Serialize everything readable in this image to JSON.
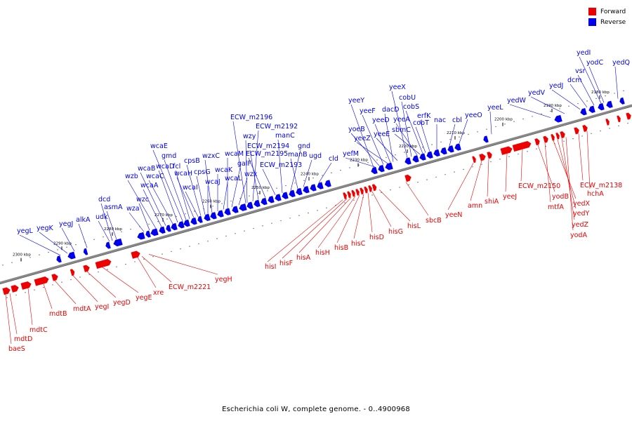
{
  "legend": {
    "forward_label": "Forward",
    "reverse_label": "Reverse"
  },
  "colors": {
    "forward": "#ee0000",
    "reverse": "#0000ee",
    "axis": "#888888"
  },
  "caption": "Escherichia coli W, complete genome. - 0..4900968",
  "scale_label_suffix": " kbp",
  "ticks_kbp": [
    2300,
    2290,
    2280,
    2270,
    2260,
    2250,
    2240,
    2230,
    2220,
    2210,
    2200,
    2190,
    2180
  ],
  "genes": {
    "forward": [
      "baeS",
      "mdtD",
      "mdtC",
      "mdtB",
      "mdtA",
      "yegI",
      "yegD",
      "yegE",
      "xre",
      "ECW_m2221",
      "yegH",
      "hisI",
      "hisF",
      "hisA",
      "hisH",
      "hisB",
      "hisC",
      "hisD",
      "hisG",
      "hisL",
      "sbcB",
      "yeeN",
      "amn",
      "shiA",
      "yeeJ",
      "ECW_m2150",
      "yodB",
      "mtfA",
      "yedX",
      "yedY",
      "yedZ",
      "yodA",
      "ECW_m2138",
      "hchA"
    ],
    "reverse": [
      "yegL",
      "yegK",
      "yegJ",
      "alkA",
      "udk",
      "dcd",
      "asmA",
      "wza",
      "wzc",
      "wzb",
      "wcaA",
      "wcaB",
      "wcaC",
      "wcaD",
      "wcaE",
      "gmd",
      "fcl",
      "wcaH",
      "wcaI",
      "cpsB",
      "cpsG",
      "wcaJ",
      "wzxC",
      "wcaK",
      "wcaL",
      "wcaM",
      "galF",
      "wzx",
      "wzy",
      "ECW_m2196",
      "ECW_m2192",
      "ECW_m2194",
      "ECW_m2195",
      "ECW_m2193",
      "manC",
      "gnd",
      "manB",
      "ugd",
      "cld",
      "yefM",
      "yeeY",
      "yoeB",
      "yeeF",
      "yeeZ",
      "yeeD",
      "dacD",
      "yeeE",
      "yeeX",
      "cobU",
      "yeeA",
      "sbmC",
      "cobS",
      "cobT",
      "erfK",
      "nac",
      "cbl",
      "yeeO",
      "yeeL",
      "yedW",
      "yedV",
      "yedJ",
      "dcm",
      "vsr",
      "yedI",
      "yodC",
      "yedQ"
    ]
  }
}
